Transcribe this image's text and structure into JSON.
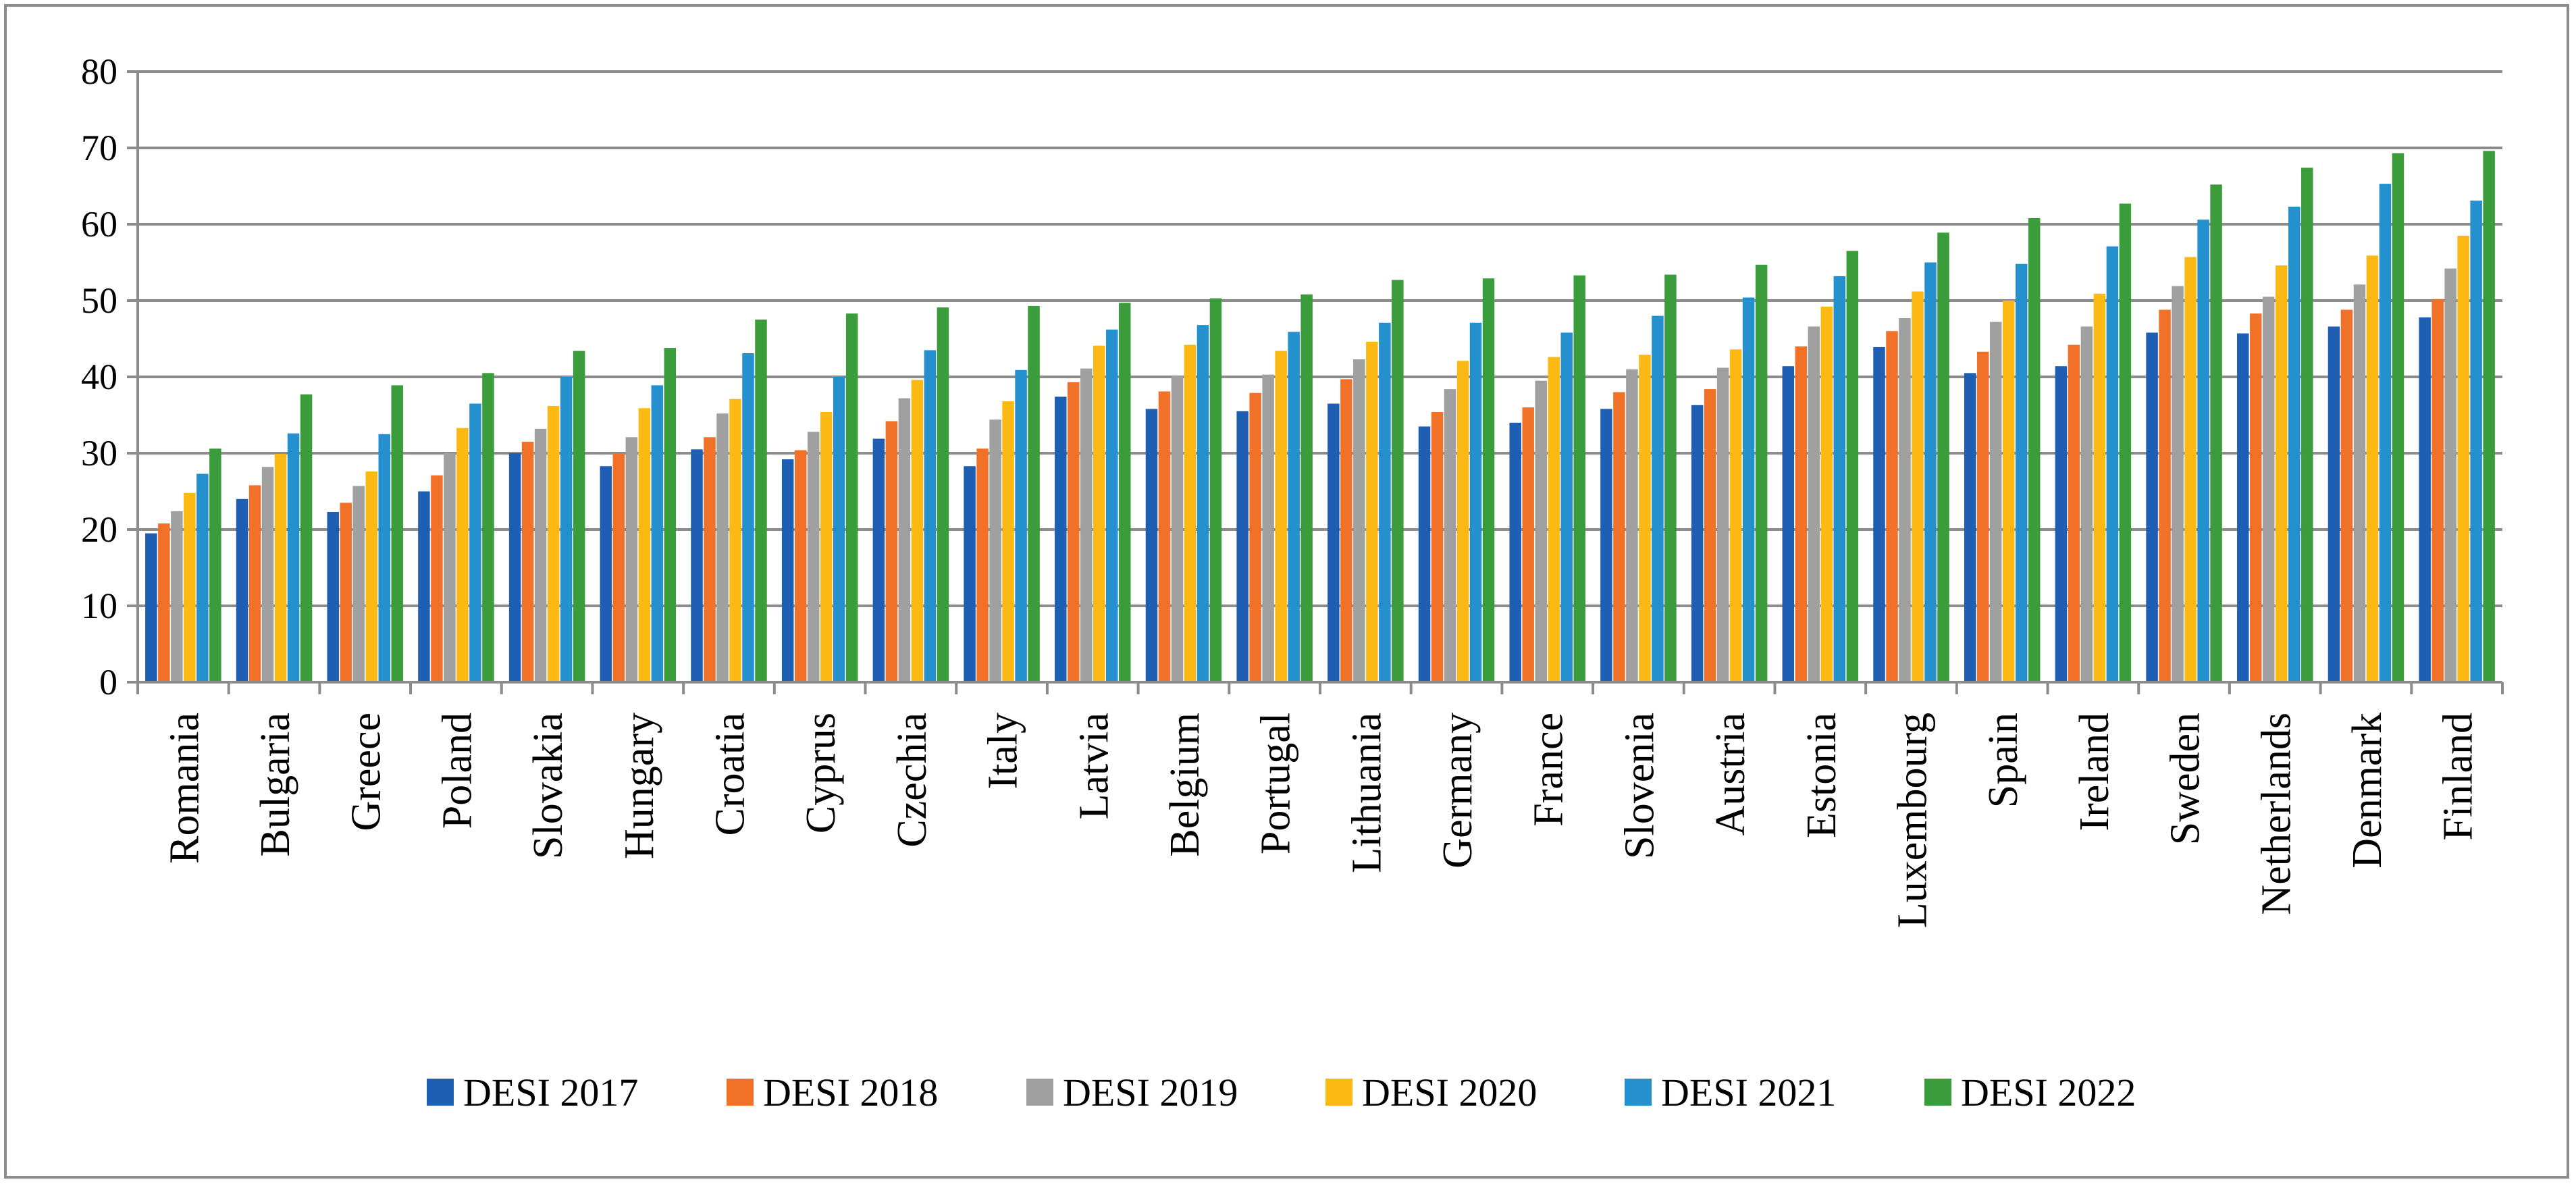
{
  "chart_data": {
    "type": "bar",
    "title": "",
    "xlabel": "",
    "ylabel": "",
    "ylim": [
      0,
      80
    ],
    "yticks": [
      0,
      10,
      20,
      30,
      40,
      50,
      60,
      70,
      80
    ],
    "grid": true,
    "legend_position": "bottom",
    "categories": [
      "Romania",
      "Bulgaria",
      "Greece",
      "Poland",
      "Slovakia",
      "Hungary",
      "Croatia",
      "Cyprus",
      "Czechia",
      "Italy",
      "Latvia",
      "Belgium",
      "Portugal",
      "Lithuania",
      "Germany",
      "France",
      "Slovenia",
      "Austria",
      "Estonia",
      "Luxembourg",
      "Spain",
      "Ireland",
      "Sweden",
      "Netherlands",
      "Denmark",
      "Finland"
    ],
    "series": [
      {
        "name": "DESI 2017",
        "color": "#1f5fb3",
        "values": [
          19.5,
          24.0,
          22.3,
          25.0,
          30.0,
          28.3,
          30.5,
          29.2,
          31.9,
          28.3,
          37.4,
          35.8,
          35.5,
          36.5,
          33.5,
          34.0,
          35.8,
          36.3,
          41.4,
          43.9,
          40.5,
          41.4,
          45.8,
          45.7,
          46.6,
          47.8
        ]
      },
      {
        "name": "DESI 2018",
        "color": "#f07127",
        "values": [
          20.8,
          25.8,
          23.5,
          27.1,
          31.5,
          30.0,
          32.1,
          30.4,
          34.2,
          30.6,
          39.3,
          38.1,
          37.9,
          39.7,
          35.4,
          36.0,
          38.0,
          38.4,
          44.0,
          46.0,
          43.3,
          44.2,
          48.8,
          48.3,
          48.8,
          50.2
        ]
      },
      {
        "name": "DESI 2019",
        "color": "#a0a0a0",
        "values": [
          22.4,
          28.2,
          25.7,
          30.0,
          33.2,
          32.1,
          35.2,
          32.8,
          37.2,
          34.4,
          41.1,
          40.1,
          40.3,
          42.3,
          38.4,
          39.5,
          41.0,
          41.2,
          46.6,
          47.7,
          47.2,
          46.6,
          51.9,
          50.5,
          52.1,
          54.2
        ]
      },
      {
        "name": "DESI 2020",
        "color": "#fcb813",
        "values": [
          24.8,
          29.9,
          27.6,
          33.3,
          36.2,
          35.9,
          37.1,
          35.4,
          39.6,
          36.8,
          44.1,
          44.2,
          43.4,
          44.6,
          42.1,
          42.6,
          42.9,
          43.6,
          49.2,
          51.2,
          50.0,
          50.9,
          55.7,
          54.6,
          55.9,
          58.5
        ]
      },
      {
        "name": "DESI 2021",
        "color": "#2490ce",
        "values": [
          27.3,
          32.6,
          32.5,
          36.5,
          40.0,
          38.9,
          43.1,
          40.0,
          43.5,
          40.9,
          46.2,
          46.8,
          45.9,
          47.1,
          47.1,
          45.8,
          48.0,
          50.4,
          53.2,
          55.0,
          54.8,
          57.1,
          60.6,
          62.3,
          65.3,
          63.1
        ]
      },
      {
        "name": "DESI 2022",
        "color": "#3b9c3b",
        "values": [
          30.6,
          37.7,
          38.9,
          40.5,
          43.4,
          43.8,
          47.5,
          48.3,
          49.1,
          49.3,
          49.7,
          50.3,
          50.8,
          52.7,
          52.9,
          53.3,
          53.4,
          54.7,
          56.5,
          58.9,
          60.8,
          62.7,
          65.2,
          67.4,
          69.3,
          69.6
        ]
      }
    ]
  }
}
